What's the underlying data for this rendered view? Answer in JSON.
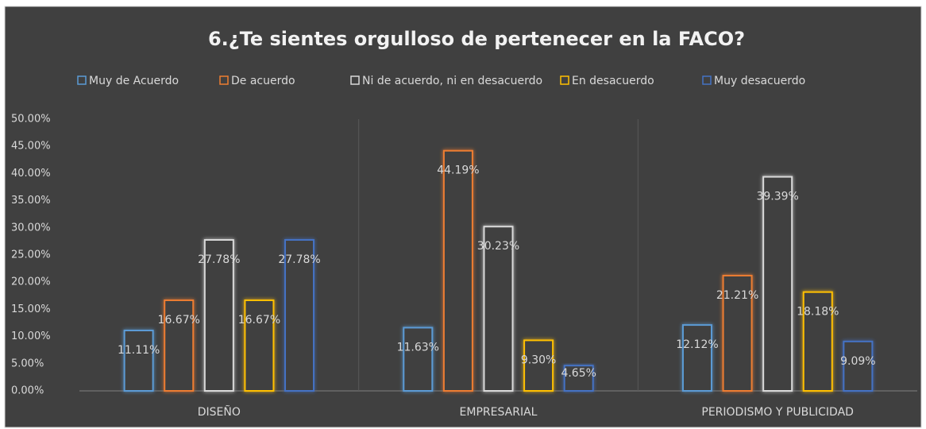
{
  "chart_data": {
    "type": "bar",
    "title": "6.¿Te sientes orgulloso de pertenecer en la FACO?",
    "categories": [
      "DISEÑO",
      "EMPRESARIAL",
      "PERIODISMO Y PUBLICIDAD"
    ],
    "series": [
      {
        "name": "Muy de Acuerdo",
        "color": "#5b9bd5",
        "values": [
          11.11,
          11.63,
          12.12
        ],
        "value_labels": [
          "11.11%",
          "11.63%",
          "12.12%"
        ]
      },
      {
        "name": "De acuerdo",
        "color": "#ed7d31",
        "values": [
          16.67,
          44.19,
          21.21
        ],
        "value_labels": [
          "16.67%",
          "44.19%",
          "21.21%"
        ]
      },
      {
        "name": "Ni de acuerdo, ni en desacuerdo",
        "color": "#d9d9d9",
        "values": [
          27.78,
          30.23,
          39.39
        ],
        "value_labels": [
          "27.78%",
          "30.23%",
          "39.39%"
        ]
      },
      {
        "name": "En desacuerdo",
        "color": "#ffc000",
        "values": [
          16.67,
          9.3,
          18.18
        ],
        "value_labels": [
          "16.67%",
          "9.30%",
          "18.18%"
        ]
      },
      {
        "name": "Muy desacuerdo",
        "color": "#4472c4",
        "values": [
          27.78,
          4.65,
          9.09
        ],
        "value_labels": [
          "27.78%",
          "4.65%",
          "9.09%"
        ]
      }
    ],
    "ylim": [
      0,
      50
    ],
    "yticks": [
      {
        "value": 0,
        "label": "0.00%"
      },
      {
        "value": 5,
        "label": "5.00%"
      },
      {
        "value": 10,
        "label": "10.00%"
      },
      {
        "value": 15,
        "label": "15.00%"
      },
      {
        "value": 20,
        "label": "20.00%"
      },
      {
        "value": 25,
        "label": "25.00%"
      },
      {
        "value": 30,
        "label": "30.00%"
      },
      {
        "value": 35,
        "label": "35.00%"
      },
      {
        "value": 40,
        "label": "40.00%"
      },
      {
        "value": 45,
        "label": "45.00%"
      },
      {
        "value": 50,
        "label": "50.00%"
      }
    ]
  }
}
